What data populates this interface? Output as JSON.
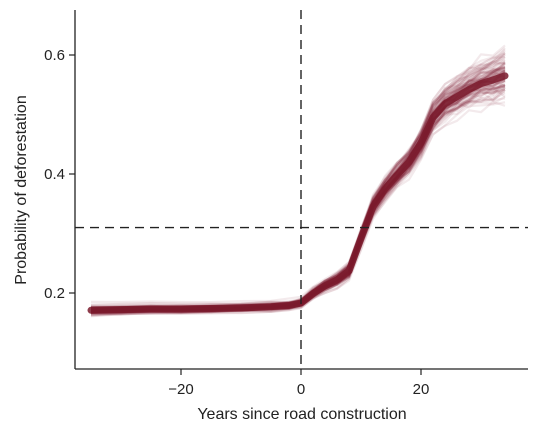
{
  "chart_data": {
    "type": "line",
    "title": "",
    "xlabel": "Years since road construction",
    "ylabel": "Probability of deforestation",
    "xlim": [
      -38,
      38
    ],
    "ylim": [
      0.075,
      0.665
    ],
    "xticks": [
      -20,
      0,
      20
    ],
    "xtick_labels": [
      "−20",
      "0",
      "20"
    ],
    "yticks": [
      0.2,
      0.4,
      0.6
    ],
    "ytick_labels": [
      "0.2",
      "0.4",
      "0.6"
    ],
    "grid": false,
    "legend": "none",
    "reference_lines": {
      "vertical_x": 0,
      "horizontal_y": 0.31,
      "style": "dashed"
    },
    "series_style": {
      "color": "#7a1a2c",
      "n_bootstrap_draws": 100,
      "band": "overlapping semi-transparent lines"
    },
    "series": [
      {
        "x": [
          -35,
          -30,
          -25,
          -20,
          -15,
          -10,
          -5,
          -2,
          0,
          2,
          4,
          6,
          8,
          10,
          12,
          14,
          16,
          18,
          20,
          22,
          24,
          26,
          28,
          30,
          32,
          34
        ],
        "values": [
          0.171,
          0.172,
          0.173,
          0.173,
          0.174,
          0.175,
          0.177,
          0.179,
          0.183,
          0.199,
          0.212,
          0.222,
          0.237,
          0.292,
          0.345,
          0.375,
          0.398,
          0.42,
          0.452,
          0.495,
          0.518,
          0.53,
          0.542,
          0.552,
          0.558,
          0.565
        ]
      }
    ]
  }
}
